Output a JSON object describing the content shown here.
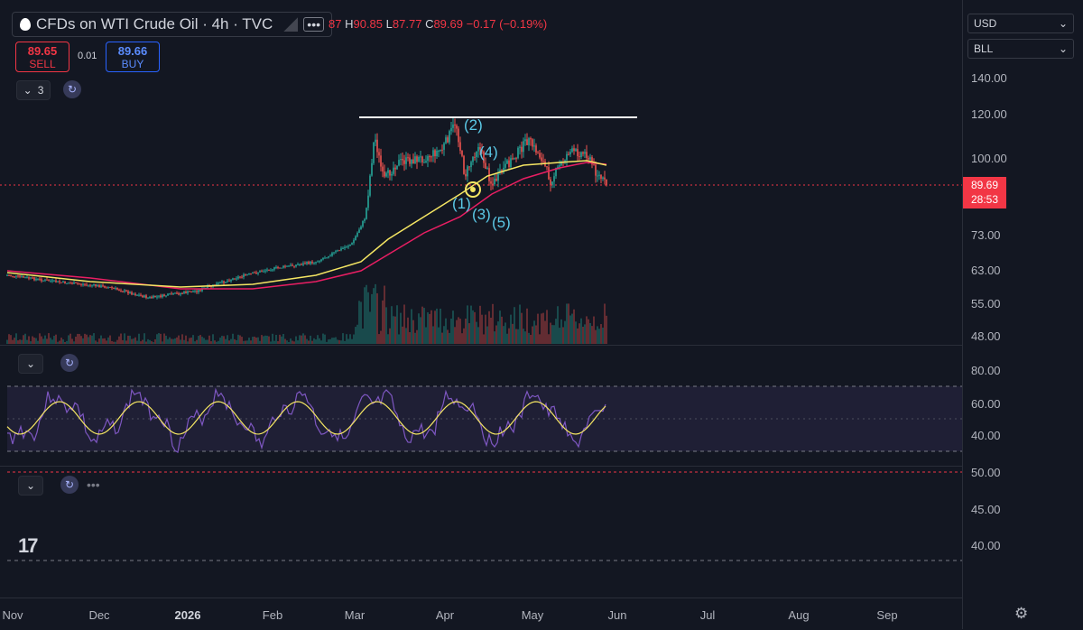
{
  "header": {
    "symbol_title": "CFDs on WTI Crude Oil · 4h · TVC",
    "ohlc": {
      "open_fragment": "87",
      "h_label": "H",
      "high": "90.85",
      "l_label": "L",
      "low": "87.77",
      "c_label": "C",
      "close": "89.69",
      "change": "−0.17 (−0.19%)"
    }
  },
  "trade": {
    "sell_price": "89.65",
    "sell_label": "SELL",
    "spread": "0.01",
    "buy_price": "89.66",
    "buy_label": "BUY"
  },
  "indicators_toggle": {
    "count": "3"
  },
  "currency": {
    "selected": "USD"
  },
  "unit": {
    "selected": "BLL"
  },
  "price_axis": [
    "140.00",
    "120.00",
    "100.00",
    "73.00",
    "63.00",
    "55.00",
    "48.00"
  ],
  "rsi_axis": [
    "80.00",
    "60.00",
    "40.00"
  ],
  "pane3_axis": [
    "50.00",
    "45.00",
    "40.00"
  ],
  "last_price": {
    "value": "89.69",
    "countdown": "28:53"
  },
  "time_axis": [
    "Nov",
    "Dec",
    "2026",
    "Feb",
    "Mar",
    "Apr",
    "May",
    "Jun",
    "Jul",
    "Aug",
    "Sep"
  ],
  "wave_labels": [
    "(1)",
    "(2)",
    "(3)",
    "(4)",
    "(5)"
  ],
  "colors": {
    "up": "#26a69a",
    "down": "#ef5350",
    "ma_fast": "#f5e663",
    "ma_slow": "#e91e63",
    "rsi": "#7e57c2",
    "accent": "#2962ff"
  },
  "icons": {
    "logo": "tradingview-logo-icon",
    "settings": "settings-gear-icon"
  }
}
